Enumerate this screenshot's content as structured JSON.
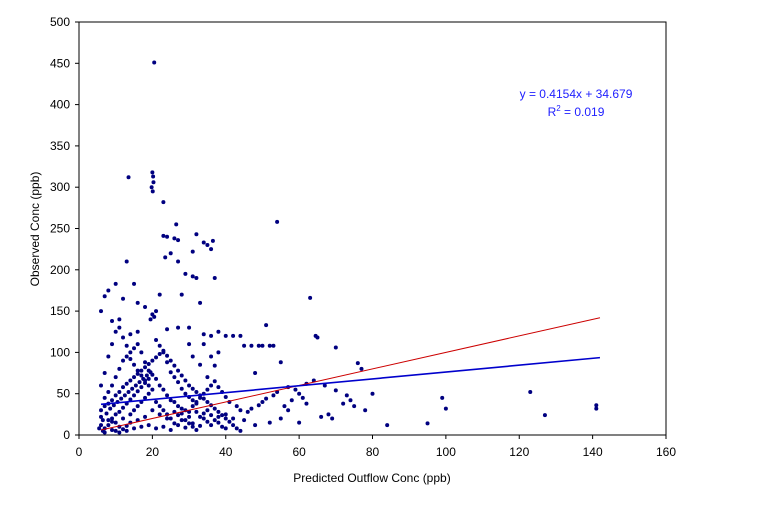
{
  "chart_data": {
    "type": "scatter",
    "title": "",
    "xlabel": "Predicted Outflow Conc (ppb)",
    "ylabel": "Observed Conc (ppb)",
    "xlim": [
      0,
      160
    ],
    "ylim": [
      0,
      500
    ],
    "x_ticks": [
      0,
      20,
      40,
      60,
      80,
      100,
      120,
      140,
      160
    ],
    "y_ticks": [
      0,
      50,
      100,
      150,
      200,
      250,
      300,
      350,
      400,
      450,
      500
    ],
    "grid": false,
    "legend": "none",
    "colors": {
      "points": "#000080",
      "trendline": "#0000cc",
      "one_to_one_line": "#cc0000",
      "equation_text": "#2020ff"
    },
    "annotation": {
      "equation": "y = 0.4154x + 34.679",
      "r_squared_prefix": "R",
      "r_squared_exp": "2",
      "r_squared_value": " = 0.019"
    },
    "trendline": {
      "slope": 0.4154,
      "intercept": 34.679,
      "x_range": [
        6,
        142
      ]
    },
    "reference_line": {
      "slope": 1,
      "intercept": 0,
      "x_range": [
        6,
        142
      ]
    },
    "series": [
      {
        "points": [
          [
            20.5,
            451
          ],
          [
            20,
            318
          ],
          [
            20.2,
            313
          ],
          [
            20.3,
            306
          ],
          [
            19.8,
            300
          ],
          [
            20.1,
            295
          ],
          [
            13.5,
            312
          ],
          [
            23,
            282
          ],
          [
            26.5,
            255
          ],
          [
            23,
            241
          ],
          [
            24,
            240
          ],
          [
            26,
            238
          ],
          [
            27,
            236
          ],
          [
            32,
            243
          ],
          [
            34,
            233
          ],
          [
            35,
            230
          ],
          [
            36.5,
            235
          ],
          [
            36,
            225
          ],
          [
            31,
            222
          ],
          [
            37,
            190
          ],
          [
            23.5,
            215
          ],
          [
            29,
            195
          ],
          [
            31,
            192
          ],
          [
            32,
            190
          ],
          [
            27,
            210
          ],
          [
            25,
            220
          ],
          [
            54,
            258
          ],
          [
            63,
            166
          ],
          [
            64.5,
            120
          ],
          [
            65,
            118
          ],
          [
            70,
            106
          ],
          [
            76,
            87
          ],
          [
            77,
            80
          ],
          [
            80,
            50
          ],
          [
            84,
            12
          ],
          [
            95,
            14
          ],
          [
            99,
            45
          ],
          [
            100,
            32
          ],
          [
            123,
            52
          ],
          [
            127,
            24
          ],
          [
            141,
            36
          ],
          [
            141,
            32
          ],
          [
            48,
            75
          ],
          [
            49,
            108
          ],
          [
            50,
            108
          ],
          [
            51,
            133
          ],
          [
            52,
            108
          ],
          [
            53,
            108
          ],
          [
            45,
            108
          ],
          [
            47,
            108
          ],
          [
            42,
            120
          ],
          [
            40,
            120
          ],
          [
            44,
            120
          ],
          [
            38,
            125
          ],
          [
            36,
            120
          ],
          [
            34,
            122
          ],
          [
            33,
            160
          ],
          [
            28,
            170
          ],
          [
            22,
            170
          ],
          [
            21,
            150
          ],
          [
            20,
            146
          ],
          [
            20.5,
            143
          ],
          [
            19.5,
            140
          ],
          [
            13,
            210
          ],
          [
            15,
            183
          ],
          [
            10,
            183
          ],
          [
            8,
            175
          ],
          [
            7,
            168
          ],
          [
            12,
            165
          ],
          [
            16,
            160
          ],
          [
            18,
            155
          ],
          [
            11,
            140
          ],
          [
            9,
            138
          ],
          [
            6,
            150
          ],
          [
            14,
            122
          ],
          [
            16,
            125
          ],
          [
            24,
            128
          ],
          [
            27,
            130
          ],
          [
            30,
            110
          ],
          [
            31,
            95
          ],
          [
            33,
            85
          ],
          [
            35,
            70
          ],
          [
            36,
            95
          ],
          [
            38,
            100
          ],
          [
            37,
            84
          ],
          [
            34,
            110
          ],
          [
            30,
            130
          ],
          [
            55,
            88
          ],
          [
            56,
            35
          ],
          [
            57,
            30
          ],
          [
            58,
            42
          ],
          [
            59,
            55
          ],
          [
            60,
            50
          ],
          [
            61,
            45
          ],
          [
            62,
            38
          ],
          [
            66,
            22
          ],
          [
            68,
            25
          ],
          [
            72,
            38
          ],
          [
            74,
            42
          ],
          [
            75,
            35
          ],
          [
            78,
            30
          ],
          [
            69,
            20
          ],
          [
            60,
            15
          ],
          [
            55,
            20
          ],
          [
            52,
            15
          ],
          [
            48,
            12
          ],
          [
            45,
            18
          ],
          [
            42,
            20
          ],
          [
            40,
            25
          ],
          [
            38,
            15
          ],
          [
            36,
            12
          ],
          [
            34,
            20
          ],
          [
            32,
            28
          ],
          [
            30,
            22
          ],
          [
            28,
            18
          ],
          [
            26,
            14
          ],
          [
            24,
            20
          ],
          [
            22,
            25
          ],
          [
            20,
            30
          ],
          [
            18,
            22
          ],
          [
            16,
            18
          ],
          [
            14,
            15
          ],
          [
            12,
            20
          ],
          [
            10,
            25
          ],
          [
            8,
            18
          ],
          [
            6,
            12
          ],
          [
            5.5,
            8
          ],
          [
            6.5,
            5
          ],
          [
            7,
            3
          ],
          [
            9,
            6
          ],
          [
            11,
            10
          ],
          [
            13,
            5
          ],
          [
            15,
            8
          ],
          [
            17,
            10
          ],
          [
            19,
            12
          ],
          [
            21,
            8
          ],
          [
            23,
            10
          ],
          [
            25,
            6
          ],
          [
            27,
            12
          ],
          [
            29,
            9
          ],
          [
            31,
            14
          ],
          [
            33,
            11
          ],
          [
            35,
            16
          ],
          [
            7,
            45
          ],
          [
            8,
            52
          ],
          [
            9,
            60
          ],
          [
            10,
            70
          ],
          [
            11,
            80
          ],
          [
            12,
            90
          ],
          [
            13,
            95
          ],
          [
            14,
            100
          ],
          [
            15,
            105
          ],
          [
            16,
            110
          ],
          [
            17,
            100
          ],
          [
            18,
            88
          ],
          [
            19,
            78
          ],
          [
            21,
            68
          ],
          [
            22,
            60
          ],
          [
            23,
            55
          ],
          [
            24,
            48
          ],
          [
            25,
            42
          ],
          [
            26,
            40
          ],
          [
            27,
            35
          ],
          [
            28,
            32
          ],
          [
            29,
            30
          ],
          [
            30,
            28
          ],
          [
            31,
            35
          ],
          [
            32,
            40
          ],
          [
            33,
            45
          ],
          [
            34,
            50
          ],
          [
            35,
            55
          ],
          [
            36,
            60
          ],
          [
            37,
            65
          ],
          [
            38,
            58
          ],
          [
            39,
            52
          ],
          [
            40,
            46
          ],
          [
            41,
            40
          ],
          [
            43,
            35
          ],
          [
            44,
            30
          ],
          [
            46,
            28
          ],
          [
            47,
            32
          ],
          [
            49,
            36
          ],
          [
            50,
            40
          ],
          [
            51,
            44
          ],
          [
            53,
            48
          ],
          [
            54,
            52
          ],
          [
            57,
            58
          ],
          [
            62,
            62
          ],
          [
            64,
            66
          ],
          [
            67,
            60
          ],
          [
            70,
            54
          ],
          [
            73,
            48
          ],
          [
            6,
            30
          ],
          [
            7,
            35
          ],
          [
            8,
            38
          ],
          [
            9,
            42
          ],
          [
            10,
            48
          ],
          [
            11,
            52
          ],
          [
            12,
            58
          ],
          [
            13,
            62
          ],
          [
            14,
            66
          ],
          [
            15,
            70
          ],
          [
            16,
            74
          ],
          [
            17,
            78
          ],
          [
            18,
            82
          ],
          [
            19,
            86
          ],
          [
            20,
            90
          ],
          [
            21,
            94
          ],
          [
            22,
            98
          ],
          [
            23,
            102
          ],
          [
            24,
            96
          ],
          [
            25,
            90
          ],
          [
            26,
            84
          ],
          [
            27,
            78
          ],
          [
            28,
            72
          ],
          [
            29,
            66
          ],
          [
            30,
            60
          ],
          [
            31,
            56
          ],
          [
            32,
            52
          ],
          [
            33,
            48
          ],
          [
            34,
            44
          ],
          [
            35,
            40
          ],
          [
            36,
            36
          ],
          [
            37,
            32
          ],
          [
            38,
            28
          ],
          [
            39,
            24
          ],
          [
            40,
            20
          ],
          [
            41,
            16
          ],
          [
            42,
            12
          ],
          [
            43,
            8
          ],
          [
            44,
            5
          ],
          [
            9,
            20
          ],
          [
            10,
            15
          ],
          [
            11,
            28
          ],
          [
            12,
            33
          ],
          [
            13,
            38
          ],
          [
            14,
            43
          ],
          [
            15,
            48
          ],
          [
            16,
            53
          ],
          [
            17,
            58
          ],
          [
            18,
            63
          ],
          [
            19,
            68
          ],
          [
            20,
            73
          ],
          [
            7,
            8
          ],
          [
            8,
            12
          ],
          [
            9,
            16
          ],
          [
            10,
            5
          ],
          [
            11,
            3
          ],
          [
            12,
            7
          ],
          [
            13,
            11
          ],
          [
            14,
            25
          ],
          [
            15,
            30
          ],
          [
            16,
            35
          ],
          [
            17,
            40
          ],
          [
            18,
            45
          ],
          [
            19,
            50
          ],
          [
            20,
            55
          ],
          [
            21,
            40
          ],
          [
            22,
            35
          ],
          [
            23,
            30
          ],
          [
            24,
            25
          ],
          [
            25,
            20
          ],
          [
            26,
            28
          ],
          [
            27,
            24
          ],
          [
            28,
            26
          ],
          [
            29,
            18
          ],
          [
            30,
            14
          ],
          [
            31,
            10
          ],
          [
            32,
            6
          ],
          [
            33,
            22
          ],
          [
            34,
            26
          ],
          [
            35,
            30
          ],
          [
            36,
            24
          ],
          [
            37,
            18
          ],
          [
            38,
            22
          ],
          [
            39,
            10
          ],
          [
            40,
            8
          ],
          [
            6,
            60
          ],
          [
            7,
            75
          ],
          [
            8,
            95
          ],
          [
            9,
            110
          ],
          [
            10,
            125
          ],
          [
            11,
            130
          ],
          [
            12,
            118
          ],
          [
            13,
            108
          ],
          [
            14,
            92
          ],
          [
            15,
            85
          ],
          [
            16,
            78
          ],
          [
            17,
            72
          ],
          [
            18,
            66
          ],
          [
            19,
            60
          ],
          [
            21,
            115
          ],
          [
            22,
            108
          ],
          [
            23,
            100
          ],
          [
            24,
            88
          ],
          [
            25,
            76
          ],
          [
            26,
            70
          ],
          [
            27,
            64
          ],
          [
            28,
            56
          ],
          [
            29,
            50
          ],
          [
            30,
            46
          ],
          [
            31,
            42
          ],
          [
            32,
            38
          ],
          [
            6,
            22
          ],
          [
            6.5,
            18
          ],
          [
            7.5,
            26
          ],
          [
            8.5,
            32
          ],
          [
            9.5,
            36
          ],
          [
            10.5,
            40
          ],
          [
            11.5,
            44
          ],
          [
            12.5,
            48
          ],
          [
            13.5,
            52
          ],
          [
            14.5,
            56
          ],
          [
            15.5,
            60
          ],
          [
            16.5,
            64
          ],
          [
            17.5,
            68
          ],
          [
            18.5,
            72
          ],
          [
            19.5,
            76
          ]
        ]
      }
    ]
  }
}
